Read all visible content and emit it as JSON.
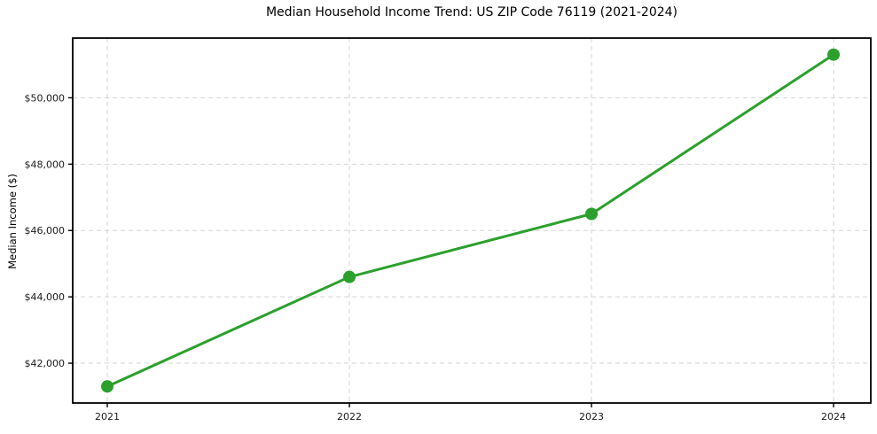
{
  "chart_data": {
    "type": "line",
    "title": "Median Household Income Trend: US ZIP Code 76119 (2021-2024)",
    "xlabel": "",
    "ylabel": "Median Income ($)",
    "categories": [
      "2021",
      "2022",
      "2023",
      "2024"
    ],
    "series": [
      {
        "name": "Median Household Income",
        "values": [
          41300,
          44600,
          46500,
          51300
        ]
      }
    ],
    "ylim": [
      40800,
      51800
    ],
    "yticks": [
      42000,
      44000,
      46000,
      48000,
      50000
    ],
    "ytick_labels": [
      "$42,000",
      "$44,000",
      "$46,000",
      "$48,000",
      "$50,000"
    ],
    "grid": true,
    "grid_style": "dashed",
    "legend_position": "none",
    "marker": "circle",
    "colors": {
      "line": "#2ca02c",
      "marker": "#2ca02c",
      "grid": "#d3d3d3",
      "spine": "#000000",
      "tick_label": "#1a1a1a",
      "background": "#ffffff"
    }
  }
}
